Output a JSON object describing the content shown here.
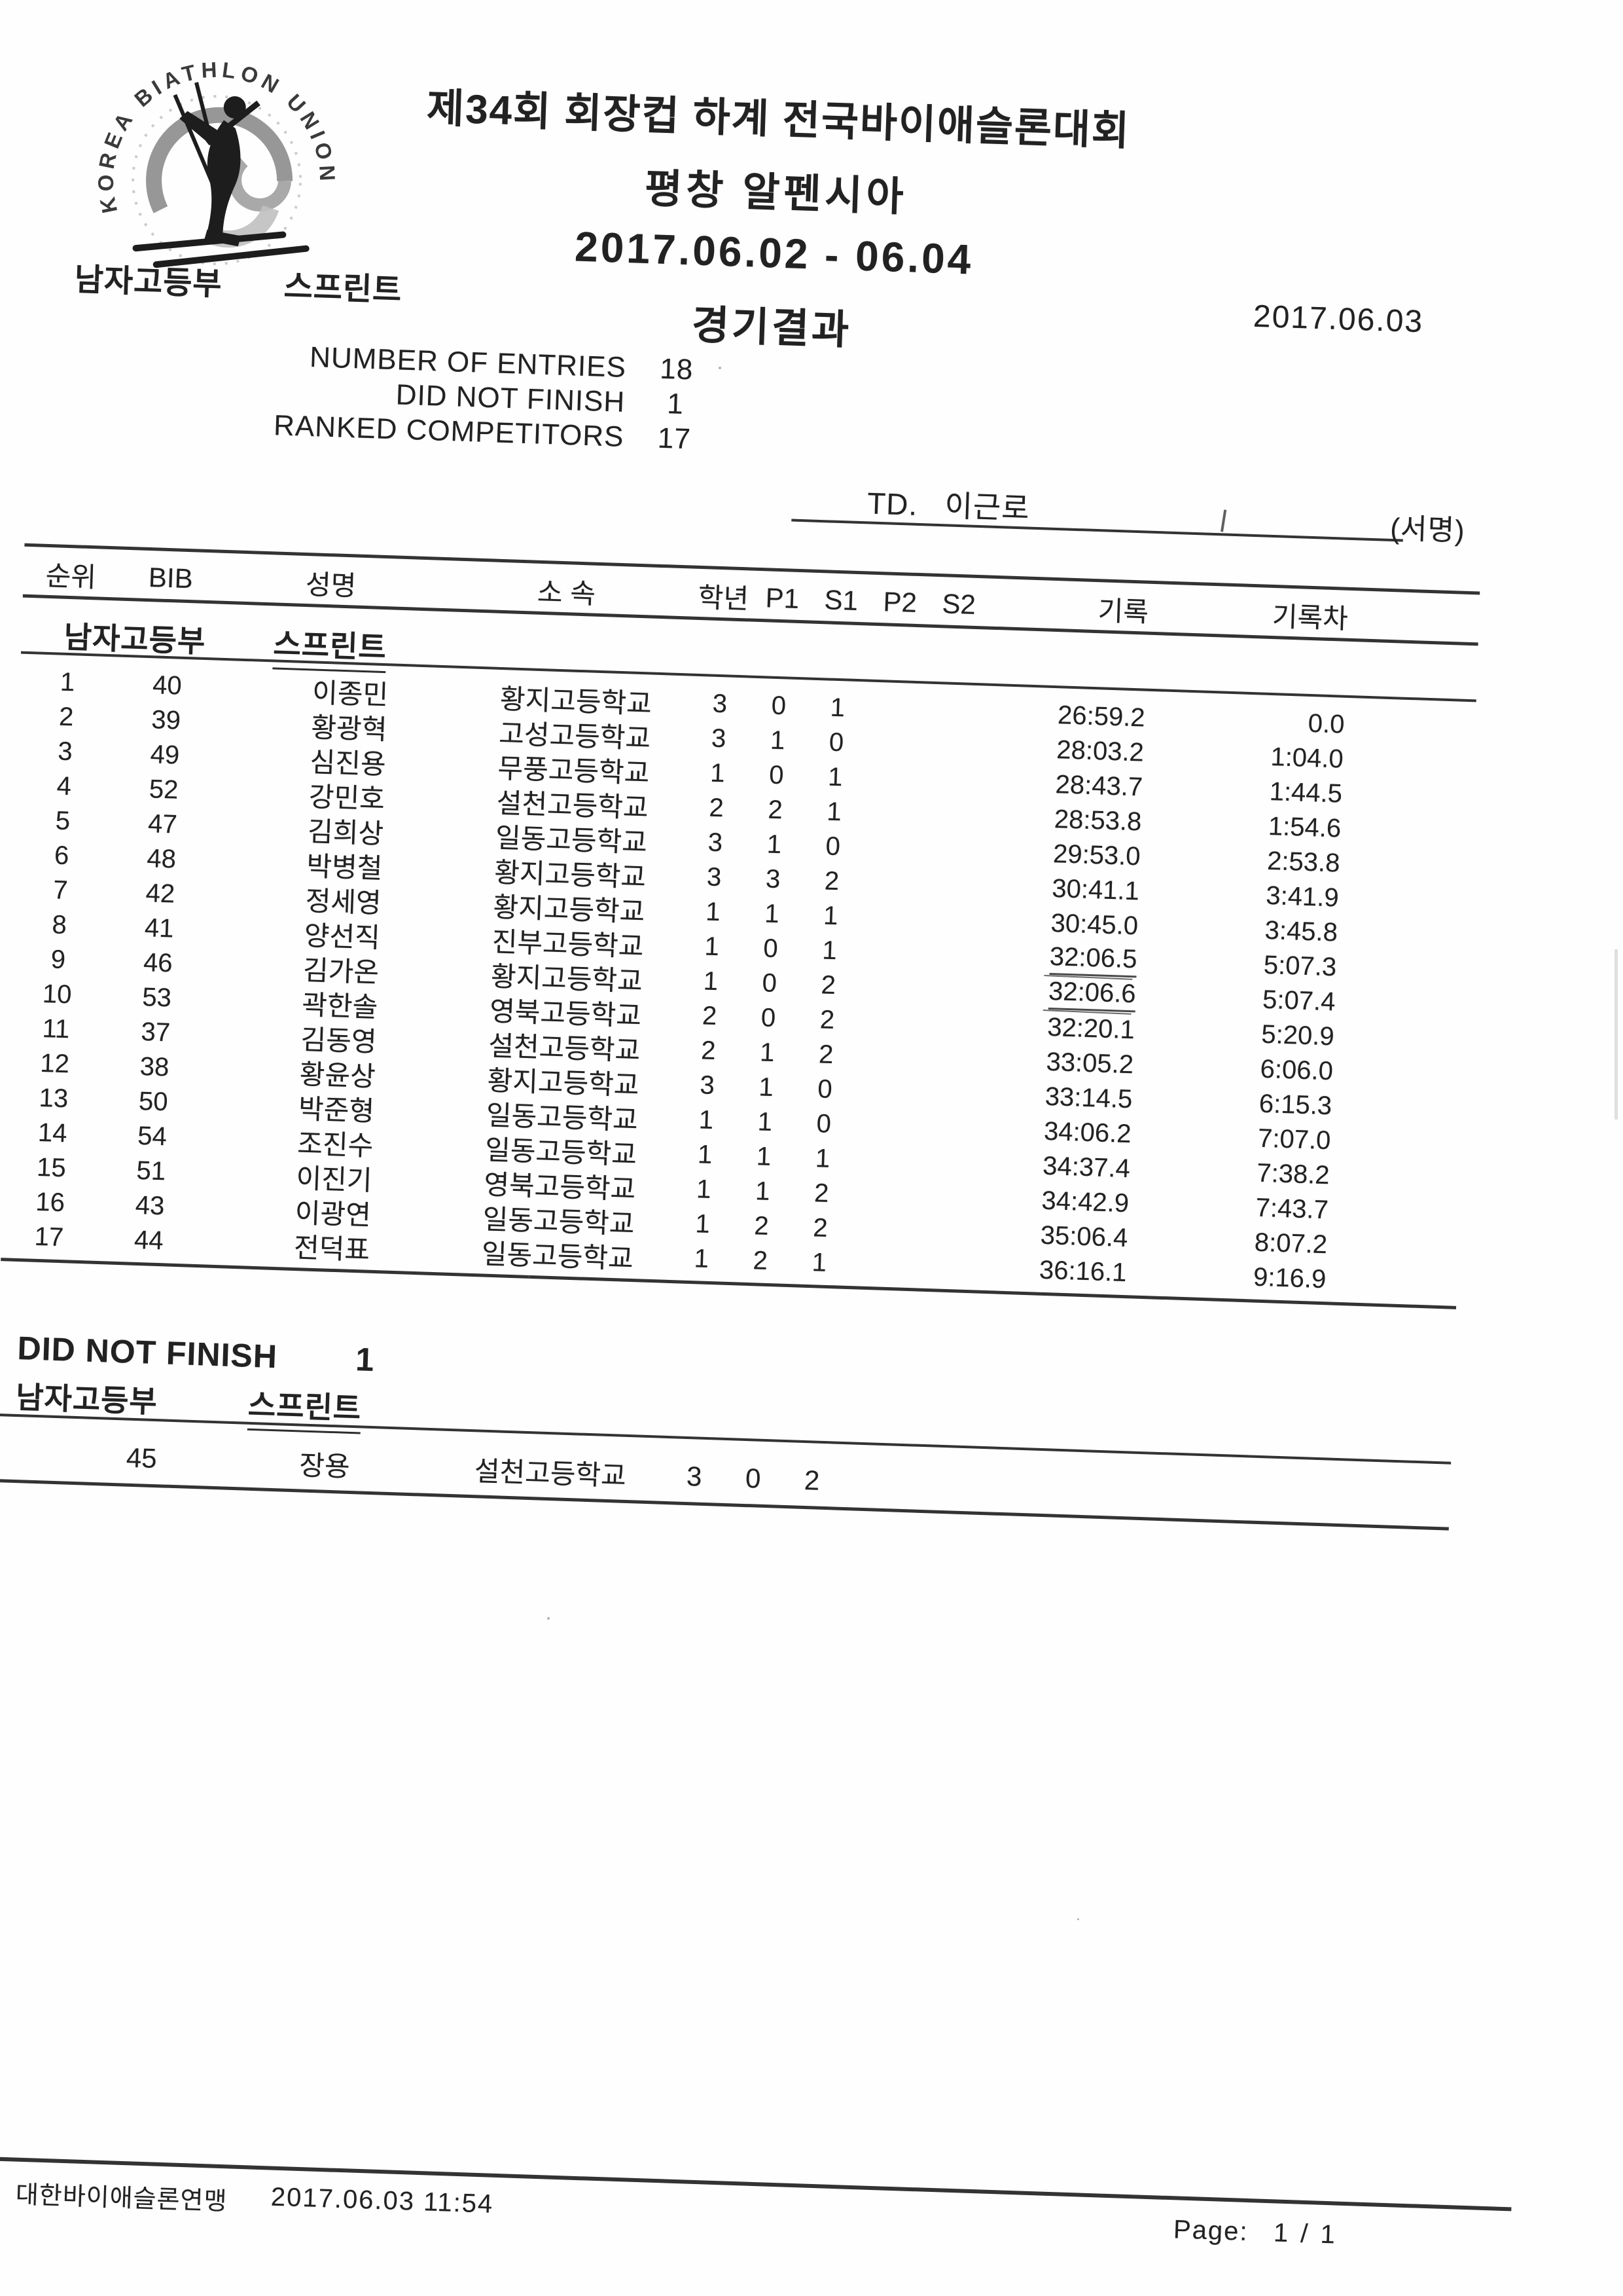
{
  "logo": {
    "arc_text": "KOREA BIATHLON UNION"
  },
  "header": {
    "title_line1": "제34회 회장컵 하계 전국바이애슬론대회",
    "title_line2": "평창 알펜시아",
    "title_line3": "2017.06.02 - 06.04",
    "result_title": "경기결과",
    "category": "남자고등부",
    "event": "스프린트",
    "scan_date": "2017.06.03"
  },
  "stats": {
    "entries": {
      "label": "NUMBER OF ENTRIES",
      "value": "18"
    },
    "dnf": {
      "label": "DID NOT FINISH",
      "value": "1"
    },
    "ranked": {
      "label": "RANKED COMPETITORS",
      "value": "17"
    }
  },
  "officials": {
    "td_label": "TD.",
    "td_name": "이근로",
    "sign_label": "(서명)"
  },
  "table": {
    "headers": {
      "rank": "순위",
      "bib": "BIB",
      "name": "성명",
      "school": "소 속",
      "grade": "학년",
      "p1": "P1",
      "s1": "S1",
      "p2": "P2",
      "s2": "S2",
      "record": "기록",
      "diff": "기록차"
    },
    "section": {
      "category": "남자고등부",
      "event": "스프린트"
    },
    "rows": [
      {
        "rank": "1",
        "bib": "40",
        "name": "이종민",
        "school": "황지고등학교",
        "grade": "3",
        "p1": "0",
        "s1": "1",
        "p2": "",
        "s2": "",
        "record": "26:59.2",
        "diff": "0.0",
        "record_underlined": false
      },
      {
        "rank": "2",
        "bib": "39",
        "name": "황광혁",
        "school": "고성고등학교",
        "grade": "3",
        "p1": "1",
        "s1": "0",
        "p2": "",
        "s2": "",
        "record": "28:03.2",
        "diff": "1:04.0",
        "record_underlined": false
      },
      {
        "rank": "3",
        "bib": "49",
        "name": "심진용",
        "school": "무풍고등학교",
        "grade": "1",
        "p1": "0",
        "s1": "1",
        "p2": "",
        "s2": "",
        "record": "28:43.7",
        "diff": "1:44.5",
        "record_underlined": false
      },
      {
        "rank": "4",
        "bib": "52",
        "name": "강민호",
        "school": "설천고등학교",
        "grade": "2",
        "p1": "2",
        "s1": "1",
        "p2": "",
        "s2": "",
        "record": "28:53.8",
        "diff": "1:54.6",
        "record_underlined": false
      },
      {
        "rank": "5",
        "bib": "47",
        "name": "김희상",
        "school": "일동고등학교",
        "grade": "3",
        "p1": "1",
        "s1": "0",
        "p2": "",
        "s2": "",
        "record": "29:53.0",
        "diff": "2:53.8",
        "record_underlined": false
      },
      {
        "rank": "6",
        "bib": "48",
        "name": "박병철",
        "school": "황지고등학교",
        "grade": "3",
        "p1": "3",
        "s1": "2",
        "p2": "",
        "s2": "",
        "record": "30:41.1",
        "diff": "3:41.9",
        "record_underlined": false
      },
      {
        "rank": "7",
        "bib": "42",
        "name": "정세영",
        "school": "황지고등학교",
        "grade": "1",
        "p1": "1",
        "s1": "1",
        "p2": "",
        "s2": "",
        "record": "30:45.0",
        "diff": "3:45.8",
        "record_underlined": false
      },
      {
        "rank": "8",
        "bib": "41",
        "name": "양선직",
        "school": "진부고등학교",
        "grade": "1",
        "p1": "0",
        "s1": "1",
        "p2": "",
        "s2": "",
        "record": "32:06.5",
        "diff": "5:07.3",
        "record_underlined": true
      },
      {
        "rank": "9",
        "bib": "46",
        "name": "김가온",
        "school": "황지고등학교",
        "grade": "1",
        "p1": "0",
        "s1": "2",
        "p2": "",
        "s2": "",
        "record": "32:06.6",
        "diff": "5:07.4",
        "record_underlined": true
      },
      {
        "rank": "10",
        "bib": "53",
        "name": "곽한솔",
        "school": "영북고등학교",
        "grade": "2",
        "p1": "0",
        "s1": "2",
        "p2": "",
        "s2": "",
        "record": "32:20.1",
        "diff": "5:20.9",
        "record_underlined": false
      },
      {
        "rank": "11",
        "bib": "37",
        "name": "김동영",
        "school": "설천고등학교",
        "grade": "2",
        "p1": "1",
        "s1": "2",
        "p2": "",
        "s2": "",
        "record": "33:05.2",
        "diff": "6:06.0",
        "record_underlined": false
      },
      {
        "rank": "12",
        "bib": "38",
        "name": "황윤상",
        "school": "황지고등학교",
        "grade": "3",
        "p1": "1",
        "s1": "0",
        "p2": "",
        "s2": "",
        "record": "33:14.5",
        "diff": "6:15.3",
        "record_underlined": false
      },
      {
        "rank": "13",
        "bib": "50",
        "name": "박준형",
        "school": "일동고등학교",
        "grade": "1",
        "p1": "1",
        "s1": "0",
        "p2": "",
        "s2": "",
        "record": "34:06.2",
        "diff": "7:07.0",
        "record_underlined": false
      },
      {
        "rank": "14",
        "bib": "54",
        "name": "조진수",
        "school": "일동고등학교",
        "grade": "1",
        "p1": "1",
        "s1": "1",
        "p2": "",
        "s2": "",
        "record": "34:37.4",
        "diff": "7:38.2",
        "record_underlined": false
      },
      {
        "rank": "15",
        "bib": "51",
        "name": "이진기",
        "school": "영북고등학교",
        "grade": "1",
        "p1": "1",
        "s1": "2",
        "p2": "",
        "s2": "",
        "record": "34:42.9",
        "diff": "7:43.7",
        "record_underlined": false
      },
      {
        "rank": "16",
        "bib": "43",
        "name": "이광연",
        "school": "일동고등학교",
        "grade": "1",
        "p1": "2",
        "s1": "2",
        "p2": "",
        "s2": "",
        "record": "35:06.4",
        "diff": "8:07.2",
        "record_underlined": false
      },
      {
        "rank": "17",
        "bib": "44",
        "name": "전덕표",
        "school": "일동고등학교",
        "grade": "1",
        "p1": "2",
        "s1": "1",
        "p2": "",
        "s2": "",
        "record": "36:16.1",
        "diff": "9:16.9",
        "record_underlined": false
      }
    ]
  },
  "dnf_section": {
    "label": "DID NOT FINISH",
    "count": "1",
    "category": "남자고등부",
    "event": "스프린트",
    "row": {
      "bib": "45",
      "name": "장용",
      "school": "설천고등학교",
      "grade": "3",
      "p1": "0",
      "s1": "2"
    }
  },
  "footer": {
    "org": "대한바이애슬론연맹",
    "datetime": "2017.06.03 11:54",
    "page_label": "Page:",
    "page_value": "1 / 1"
  }
}
